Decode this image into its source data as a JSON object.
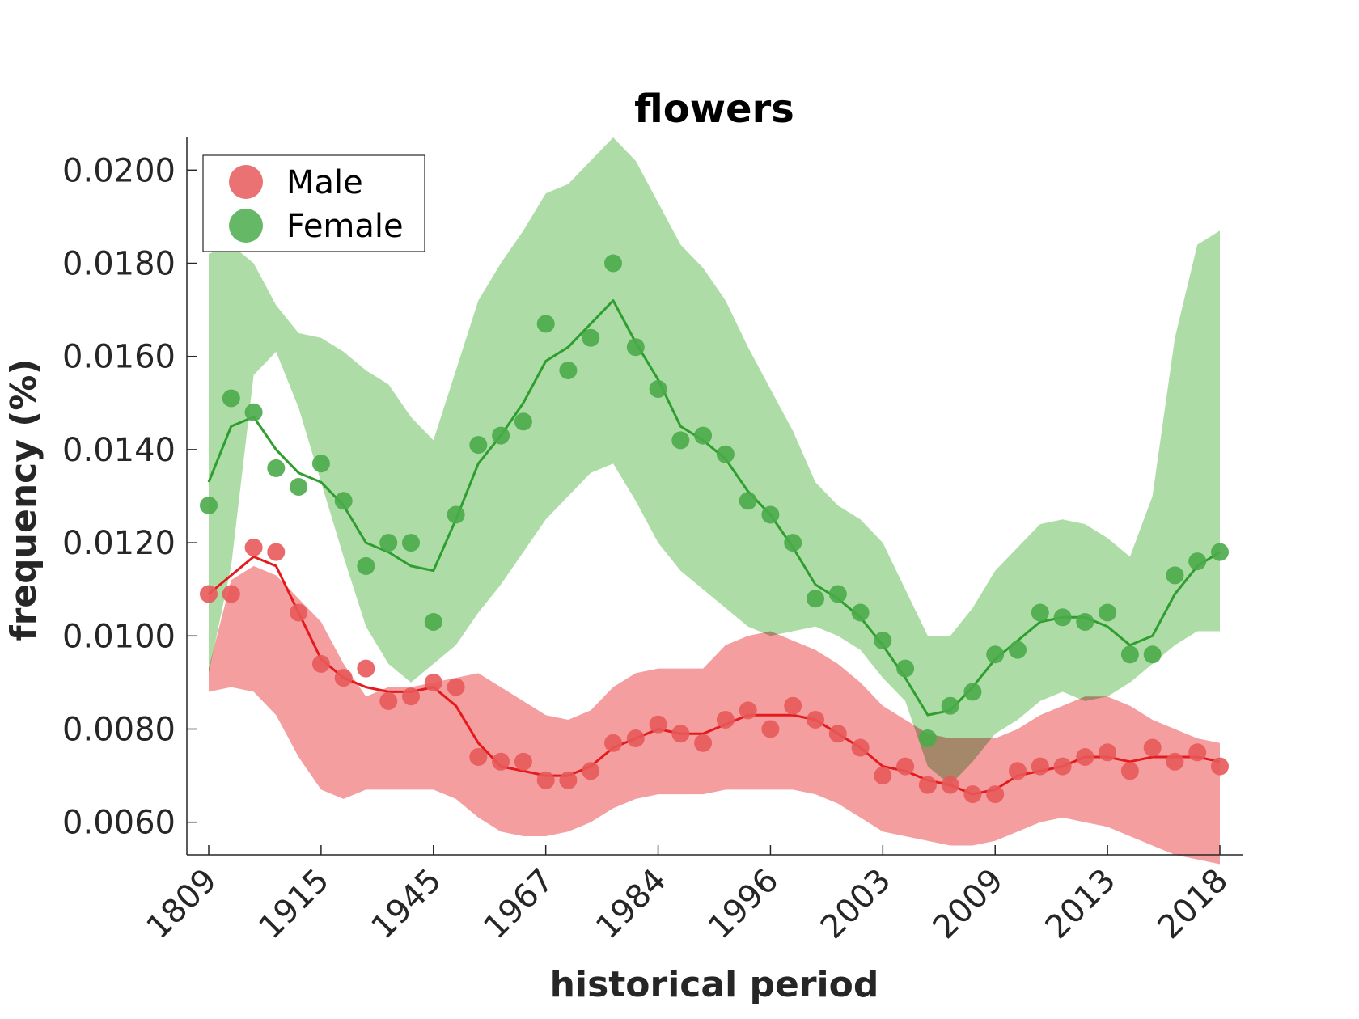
{
  "chart_data": {
    "type": "line",
    "title": "flowers",
    "xlabel": "historical period",
    "ylabel": "frequency (%)",
    "ylim": [
      0.0053,
      0.0207
    ],
    "yticks": [
      0.006,
      0.008,
      0.01,
      0.012,
      0.014,
      0.016,
      0.018,
      0.02
    ],
    "ytick_labels": [
      "0.0060",
      "0.0080",
      "0.0100",
      "0.0120",
      "0.0140",
      "0.0160",
      "0.0180",
      "0.0200"
    ],
    "x_index_range": [
      -1,
      46.2
    ],
    "x_ticks": [
      {
        "index": 0,
        "label": "1809"
      },
      {
        "index": 5,
        "label": "1915"
      },
      {
        "index": 10,
        "label": "1945"
      },
      {
        "index": 15,
        "label": "1967"
      },
      {
        "index": 20,
        "label": "1984"
      },
      {
        "index": 25,
        "label": "1996"
      },
      {
        "index": 30,
        "label": "2003"
      },
      {
        "index": 35,
        "label": "2009"
      },
      {
        "index": 40,
        "label": "2013"
      },
      {
        "index": 45,
        "label": "2018"
      }
    ],
    "legend": {
      "position": "top-left"
    },
    "series": [
      {
        "name": "Male",
        "color": "#e41a1c",
        "marker_color": "#e8595a",
        "band_color": "#f0797b",
        "points": [
          0.0109,
          0.0109,
          0.0119,
          0.0118,
          0.0105,
          0.0094,
          0.0091,
          0.0093,
          0.0086,
          0.0087,
          0.009,
          0.0089,
          0.0074,
          0.0073,
          0.0073,
          0.0069,
          0.0069,
          0.0071,
          0.0077,
          0.0078,
          0.0081,
          0.0079,
          0.0077,
          0.0082,
          0.0084,
          0.008,
          0.0085,
          0.0082,
          0.0079,
          0.0076,
          0.007,
          0.0072,
          0.0068,
          0.0068,
          0.0066,
          0.0066,
          0.0071,
          0.0072,
          0.0072,
          0.0074,
          0.0075,
          0.0071,
          0.0076,
          0.0073,
          0.0075,
          0.0072
        ],
        "line": [
          0.0109,
          0.0113,
          0.0117,
          0.0115,
          0.0105,
          0.0095,
          0.0091,
          0.0089,
          0.0088,
          0.0088,
          0.0089,
          0.0085,
          0.0077,
          0.0072,
          0.0071,
          0.007,
          0.007,
          0.0072,
          0.0076,
          0.0078,
          0.008,
          0.0079,
          0.0079,
          0.0081,
          0.0083,
          0.0083,
          0.0083,
          0.0082,
          0.0079,
          0.0076,
          0.0072,
          0.0071,
          0.0069,
          0.0068,
          0.0066,
          0.0067,
          0.007,
          0.0071,
          0.0072,
          0.0074,
          0.0074,
          0.0073,
          0.0074,
          0.0074,
          0.0074,
          0.0073
        ],
        "upper": [
          0.0093,
          0.0112,
          0.0115,
          0.0113,
          0.0108,
          0.0103,
          0.0094,
          0.0087,
          0.0089,
          0.0089,
          0.009,
          0.0091,
          0.0092,
          0.0089,
          0.0086,
          0.0083,
          0.0082,
          0.0084,
          0.0089,
          0.0092,
          0.0093,
          0.0093,
          0.0093,
          0.0098,
          0.01,
          0.0101,
          0.0099,
          0.0097,
          0.0094,
          0.009,
          0.0085,
          0.0082,
          0.0079,
          0.0078,
          0.0078,
          0.0078,
          0.008,
          0.0083,
          0.0085,
          0.0087,
          0.0087,
          0.0085,
          0.0082,
          0.008,
          0.0078,
          0.0077
        ],
        "lower": [
          0.0088,
          0.0089,
          0.0088,
          0.0083,
          0.0074,
          0.0067,
          0.0065,
          0.0067,
          0.0067,
          0.0067,
          0.0067,
          0.0065,
          0.0061,
          0.0058,
          0.0057,
          0.0057,
          0.0058,
          0.006,
          0.0063,
          0.0065,
          0.0066,
          0.0066,
          0.0066,
          0.0067,
          0.0067,
          0.0067,
          0.0067,
          0.0066,
          0.0064,
          0.0061,
          0.0058,
          0.0057,
          0.0056,
          0.0055,
          0.0055,
          0.0056,
          0.0058,
          0.006,
          0.0061,
          0.006,
          0.0059,
          0.0057,
          0.0055,
          0.0053,
          0.0052,
          0.0051
        ]
      },
      {
        "name": "Female",
        "color": "#2e9e2e",
        "marker_color": "#4aab4a",
        "band_color": "#8ecf85",
        "points": [
          0.0128,
          0.0151,
          0.0148,
          0.0136,
          0.0132,
          0.0137,
          0.0129,
          0.0115,
          0.012,
          0.012,
          0.0103,
          0.0126,
          0.0141,
          0.0143,
          0.0146,
          0.0167,
          0.0157,
          0.0164,
          0.018,
          0.0162,
          0.0153,
          0.0142,
          0.0143,
          0.0139,
          0.0129,
          0.0126,
          0.012,
          0.0108,
          0.0109,
          0.0105,
          0.0099,
          0.0093,
          0.0078,
          0.0085,
          0.0088,
          0.0096,
          0.0097,
          0.0105,
          0.0104,
          0.0103,
          0.0105,
          0.0096,
          0.0096,
          0.0113,
          0.0116,
          0.0118
        ],
        "line": [
          0.0133,
          0.0145,
          0.0147,
          0.014,
          0.0135,
          0.0133,
          0.0128,
          0.012,
          0.0118,
          0.0115,
          0.0114,
          0.0125,
          0.0137,
          0.0143,
          0.015,
          0.0159,
          0.0162,
          0.0167,
          0.0172,
          0.0163,
          0.0155,
          0.0145,
          0.0142,
          0.0138,
          0.0131,
          0.0126,
          0.0119,
          0.0111,
          0.0108,
          0.0104,
          0.0098,
          0.0091,
          0.0083,
          0.0084,
          0.0089,
          0.0095,
          0.0099,
          0.0103,
          0.0104,
          0.0104,
          0.0102,
          0.0098,
          0.01,
          0.0109,
          0.0115,
          0.0118
        ],
        "upper": [
          0.0182,
          0.0184,
          0.018,
          0.0171,
          0.0165,
          0.0164,
          0.0161,
          0.0157,
          0.0154,
          0.0147,
          0.0142,
          0.0157,
          0.0172,
          0.018,
          0.0187,
          0.0195,
          0.0197,
          0.0202,
          0.0207,
          0.0202,
          0.0193,
          0.0184,
          0.0179,
          0.0172,
          0.0162,
          0.0153,
          0.0144,
          0.0133,
          0.0128,
          0.0125,
          0.012,
          0.011,
          0.01,
          0.01,
          0.0106,
          0.0114,
          0.0119,
          0.0124,
          0.0125,
          0.0124,
          0.0121,
          0.0117,
          0.013,
          0.0164,
          0.0184,
          0.0187
        ],
        "lower": [
          0.0092,
          0.0115,
          0.0156,
          0.0161,
          0.0149,
          0.0133,
          0.0117,
          0.0102,
          0.0094,
          0.009,
          0.0094,
          0.0098,
          0.0105,
          0.0111,
          0.0118,
          0.0125,
          0.013,
          0.0135,
          0.0137,
          0.0129,
          0.012,
          0.0114,
          0.011,
          0.0106,
          0.0102,
          0.01,
          0.0101,
          0.0102,
          0.01,
          0.0097,
          0.0091,
          0.0086,
          0.0072,
          0.0068,
          0.0073,
          0.0079,
          0.0082,
          0.0086,
          0.0088,
          0.0086,
          0.0087,
          0.009,
          0.0094,
          0.0098,
          0.0101,
          0.0101
        ]
      }
    ]
  }
}
